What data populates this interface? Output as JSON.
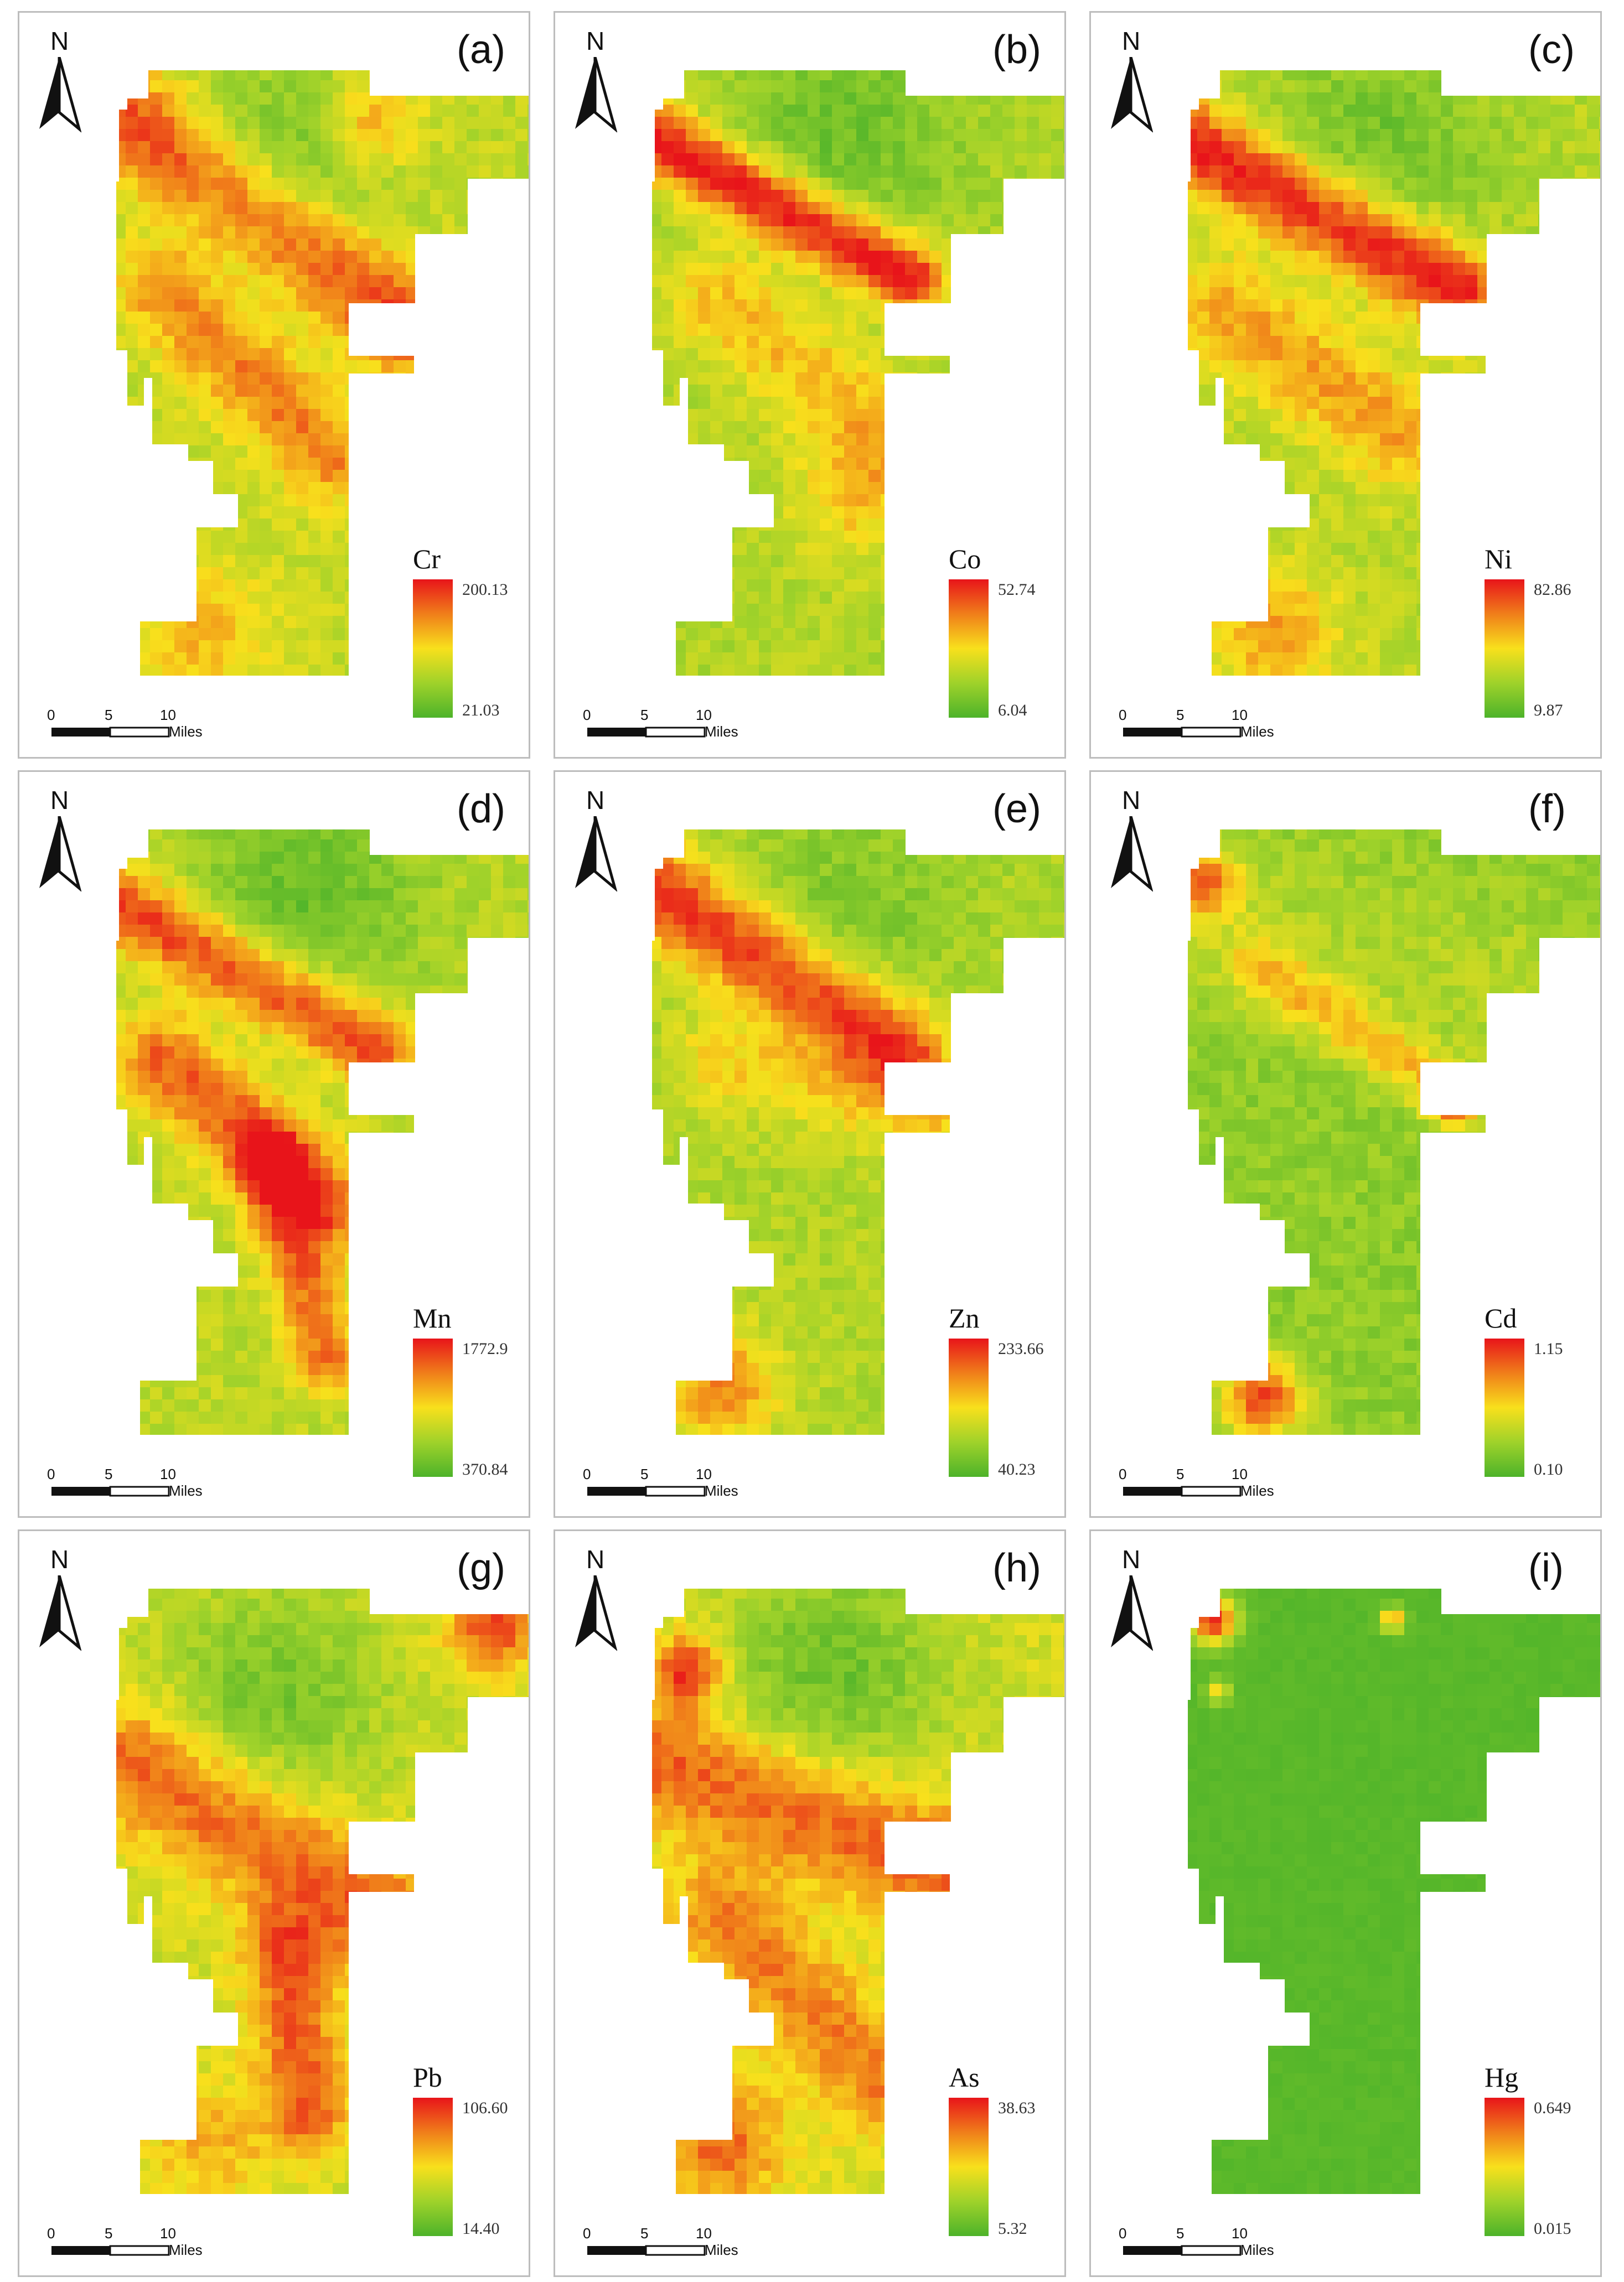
{
  "panels": [
    {
      "label": "(a)",
      "element": "Cr",
      "max": "200.13",
      "min": "21.03",
      "theme": "cr"
    },
    {
      "label": "(b)",
      "element": "Co",
      "max": "52.74",
      "min": "6.04",
      "theme": "co"
    },
    {
      "label": "(c)",
      "element": "Ni",
      "max": "82.86",
      "min": "9.87",
      "theme": "ni"
    },
    {
      "label": "(d)",
      "element": "Mn",
      "max": "1772.9",
      "min": "370.84",
      "theme": "mn"
    },
    {
      "label": "(e)",
      "element": "Zn",
      "max": "233.66",
      "min": "40.23",
      "theme": "zn"
    },
    {
      "label": "(f)",
      "element": "Cd",
      "max": "1.15",
      "min": "0.10",
      "theme": "cd"
    },
    {
      "label": "(g)",
      "element": "Pb",
      "max": "106.60",
      "min": "14.40",
      "theme": "pb"
    },
    {
      "label": "(h)",
      "element": "As",
      "max": "38.63",
      "min": "5.32",
      "theme": "as"
    },
    {
      "label": "(i)",
      "element": "Hg",
      "max": "0.649",
      "min": "0.015",
      "theme": "hg"
    }
  ],
  "north_label": "N",
  "scale_bar": {
    "ticks": [
      "0",
      "5",
      "10"
    ],
    "unit": "Miles"
  },
  "colors": {
    "high": "#e8141a",
    "mid_high": "#f07e1a",
    "mid": "#f8e01c",
    "mid_low": "#9fd22a",
    "low": "#4db32a"
  }
}
